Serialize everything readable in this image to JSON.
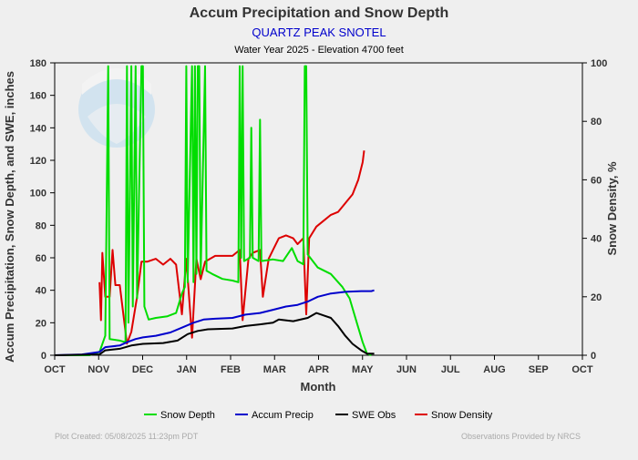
{
  "header": {
    "title": "Accum Precipitation and Snow Depth",
    "site": "QUARTZ PEAK SNOTEL",
    "subtitle": "Water Year 2025 -  Elevation 4700 feet"
  },
  "footer": {
    "created": "Plot Created: 05/08/2025 11:23pm PDT",
    "provided": "Observations Provided by NRCS"
  },
  "colors": {
    "snow_depth": "#00dd00",
    "accum_precip": "#0000cc",
    "swe_obs": "#000000",
    "snow_density": "#dd0000",
    "title_site": "#0000cc"
  },
  "chart_data": {
    "type": "line",
    "xlabel": "Month",
    "ylabel": "Accum Precipitation, Snow Depth, and SWE, inches",
    "y2label": "Snow Density, %",
    "x_range": [
      "2024-10-01",
      "2025-10-01"
    ],
    "x_ticks": [
      "OCT",
      "NOV",
      "DEC",
      "JAN",
      "FEB",
      "MAR",
      "APR",
      "MAY",
      "JUN",
      "JUL",
      "AUG",
      "SEP",
      "OCT"
    ],
    "ylim": [
      0,
      180
    ],
    "y_ticks": [
      0,
      20,
      40,
      60,
      80,
      100,
      120,
      140,
      160,
      180
    ],
    "y2lim": [
      0,
      100
    ],
    "y2_ticks": [
      0,
      20,
      40,
      60,
      80,
      100
    ],
    "grid": false,
    "legend_position": "bottom",
    "series": [
      {
        "name": "Snow Depth",
        "axis": "left",
        "points": [
          [
            "2024-10-01",
            0
          ],
          [
            "2024-10-25",
            0
          ],
          [
            "2024-11-01",
            2
          ],
          [
            "2024-11-05",
            12
          ],
          [
            "2024-11-07",
            178
          ],
          [
            "2024-11-08",
            10
          ],
          [
            "2024-11-15",
            9
          ],
          [
            "2024-11-19",
            8
          ],
          [
            "2024-11-20",
            178
          ],
          [
            "2024-11-21",
            20
          ],
          [
            "2024-11-23",
            178
          ],
          [
            "2024-11-24",
            30
          ],
          [
            "2024-11-26",
            178
          ],
          [
            "2024-11-27",
            35
          ],
          [
            "2024-11-30",
            178
          ],
          [
            "2024-12-01",
            178
          ],
          [
            "2024-12-02",
            30
          ],
          [
            "2024-12-05",
            22
          ],
          [
            "2024-12-10",
            23
          ],
          [
            "2024-12-18",
            24
          ],
          [
            "2024-12-24",
            26
          ],
          [
            "2024-12-28",
            38
          ],
          [
            "2024-12-30",
            42
          ],
          [
            "2024-12-31",
            178
          ],
          [
            "2025-01-01",
            45
          ],
          [
            "2025-01-04",
            178
          ],
          [
            "2025-01-05",
            45
          ],
          [
            "2025-01-06",
            178
          ],
          [
            "2025-01-07",
            50
          ],
          [
            "2025-01-08",
            178
          ],
          [
            "2025-01-09",
            178
          ],
          [
            "2025-01-10",
            50
          ],
          [
            "2025-01-13",
            178
          ],
          [
            "2025-01-14",
            52
          ],
          [
            "2025-01-18",
            50
          ],
          [
            "2025-01-25",
            47
          ],
          [
            "2025-02-01",
            46
          ],
          [
            "2025-02-05",
            45
          ],
          [
            "2025-02-06",
            178
          ],
          [
            "2025-02-07",
            60
          ],
          [
            "2025-02-08",
            178
          ],
          [
            "2025-02-09",
            58
          ],
          [
            "2025-02-13",
            60
          ],
          [
            "2025-02-14",
            140
          ],
          [
            "2025-02-15",
            60
          ],
          [
            "2025-02-19",
            58
          ],
          [
            "2025-02-20",
            145
          ],
          [
            "2025-02-21",
            58
          ],
          [
            "2025-03-01",
            59
          ],
          [
            "2025-03-08",
            58
          ],
          [
            "2025-03-14",
            66
          ],
          [
            "2025-03-18",
            58
          ],
          [
            "2025-03-22",
            56
          ],
          [
            "2025-03-23",
            178
          ],
          [
            "2025-03-24",
            178
          ],
          [
            "2025-03-25",
            62
          ],
          [
            "2025-04-01",
            54
          ],
          [
            "2025-04-10",
            50
          ],
          [
            "2025-04-18",
            42
          ],
          [
            "2025-04-23",
            35
          ],
          [
            "2025-04-28",
            20
          ],
          [
            "2025-05-02",
            8
          ],
          [
            "2025-05-05",
            1
          ],
          [
            "2025-05-08",
            0
          ]
        ]
      },
      {
        "name": "Accum Precip",
        "axis": "left",
        "points": [
          [
            "2024-10-01",
            0
          ],
          [
            "2024-10-20",
            0.5
          ],
          [
            "2024-11-01",
            2
          ],
          [
            "2024-11-05",
            5
          ],
          [
            "2024-11-15",
            6
          ],
          [
            "2024-11-20",
            8
          ],
          [
            "2024-11-26",
            10
          ],
          [
            "2024-12-01",
            11
          ],
          [
            "2024-12-10",
            12
          ],
          [
            "2024-12-20",
            14
          ],
          [
            "2024-12-28",
            17
          ],
          [
            "2025-01-05",
            20
          ],
          [
            "2025-01-12",
            22
          ],
          [
            "2025-01-20",
            22.5
          ],
          [
            "2025-02-01",
            23
          ],
          [
            "2025-02-10",
            25
          ],
          [
            "2025-02-20",
            26
          ],
          [
            "2025-03-01",
            28
          ],
          [
            "2025-03-10",
            30
          ],
          [
            "2025-03-18",
            31
          ],
          [
            "2025-03-25",
            33
          ],
          [
            "2025-04-01",
            36
          ],
          [
            "2025-04-10",
            38
          ],
          [
            "2025-04-20",
            39
          ],
          [
            "2025-05-01",
            39.5
          ],
          [
            "2025-05-08",
            39.5
          ],
          [
            "2025-05-10",
            40
          ]
        ]
      },
      {
        "name": "SWE Obs",
        "axis": "left",
        "points": [
          [
            "2024-10-01",
            0
          ],
          [
            "2024-11-01",
            0.5
          ],
          [
            "2024-11-05",
            3
          ],
          [
            "2024-11-15",
            4
          ],
          [
            "2024-11-23",
            6
          ],
          [
            "2024-12-01",
            7
          ],
          [
            "2024-12-15",
            7.5
          ],
          [
            "2024-12-25",
            9
          ],
          [
            "2025-01-01",
            13
          ],
          [
            "2025-01-08",
            15
          ],
          [
            "2025-01-15",
            16
          ],
          [
            "2025-02-01",
            16.5
          ],
          [
            "2025-02-10",
            18
          ],
          [
            "2025-02-20",
            19
          ],
          [
            "2025-03-01",
            20
          ],
          [
            "2025-03-05",
            22
          ],
          [
            "2025-03-15",
            21
          ],
          [
            "2025-03-25",
            23
          ],
          [
            "2025-03-31",
            26
          ],
          [
            "2025-04-05",
            24.5
          ],
          [
            "2025-04-10",
            23
          ],
          [
            "2025-04-15",
            18
          ],
          [
            "2025-04-20",
            12
          ],
          [
            "2025-04-25",
            7
          ],
          [
            "2025-05-01",
            3
          ],
          [
            "2025-05-05",
            1
          ],
          [
            "2025-05-10",
            1
          ]
        ]
      },
      {
        "name": "Snow Density",
        "axis": "right",
        "points": [
          [
            "2024-11-01",
            25
          ],
          [
            "2024-11-02",
            12
          ],
          [
            "2024-11-03",
            35
          ],
          [
            "2024-11-05",
            20
          ],
          [
            "2024-11-08",
            20
          ],
          [
            "2024-11-10",
            36
          ],
          [
            "2024-11-12",
            24
          ],
          [
            "2024-11-15",
            24
          ],
          [
            "2024-11-20",
            4
          ],
          [
            "2024-11-23",
            8
          ],
          [
            "2024-11-27",
            20
          ],
          [
            "2024-11-30",
            32
          ],
          [
            "2024-12-04",
            32
          ],
          [
            "2024-12-10",
            33
          ],
          [
            "2024-12-15",
            31
          ],
          [
            "2024-12-20",
            33
          ],
          [
            "2024-12-24",
            31
          ],
          [
            "2024-12-28",
            14
          ],
          [
            "2024-12-31",
            33
          ],
          [
            "2025-01-04",
            6
          ],
          [
            "2025-01-07",
            33
          ],
          [
            "2025-01-10",
            26
          ],
          [
            "2025-01-13",
            32
          ],
          [
            "2025-01-20",
            34
          ],
          [
            "2025-01-25",
            34
          ],
          [
            "2025-02-01",
            34
          ],
          [
            "2025-02-06",
            36
          ],
          [
            "2025-02-08",
            12
          ],
          [
            "2025-02-12",
            33
          ],
          [
            "2025-02-15",
            35
          ],
          [
            "2025-02-20",
            36
          ],
          [
            "2025-02-22",
            20
          ],
          [
            "2025-02-26",
            33
          ],
          [
            "2025-03-01",
            36
          ],
          [
            "2025-03-05",
            40
          ],
          [
            "2025-03-10",
            41
          ],
          [
            "2025-03-15",
            40
          ],
          [
            "2025-03-18",
            38
          ],
          [
            "2025-03-22",
            40
          ],
          [
            "2025-03-24",
            14
          ],
          [
            "2025-03-26",
            40
          ],
          [
            "2025-03-31",
            44
          ],
          [
            "2025-04-05",
            46
          ],
          [
            "2025-04-10",
            48
          ],
          [
            "2025-04-15",
            49
          ],
          [
            "2025-04-20",
            52
          ],
          [
            "2025-04-25",
            55
          ],
          [
            "2025-04-29",
            60
          ],
          [
            "2025-05-02",
            66
          ],
          [
            "2025-05-03",
            70
          ]
        ]
      }
    ]
  }
}
